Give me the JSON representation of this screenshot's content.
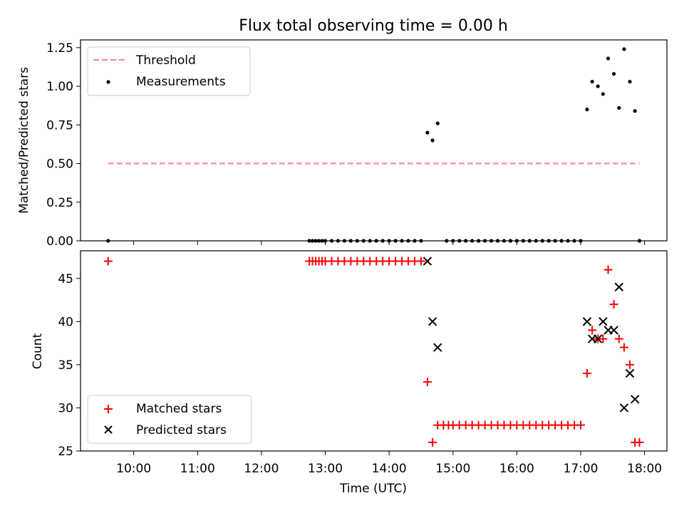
{
  "figure_title": "Flux total observing time = 0.00 h",
  "chart_data": [
    {
      "type": "scatter",
      "ylabel": "Matched/Predicted stars",
      "ylim": [
        0,
        1.3
      ],
      "yticks": [
        "0.00",
        "0.25",
        "0.50",
        "0.75",
        "1.00",
        "1.25"
      ],
      "xlim_hours": [
        9.167,
        18.35
      ],
      "threshold": {
        "name": "Threshold",
        "value": 0.5,
        "x_start": 9.6,
        "x_end": 17.92,
        "color": "#ff8080"
      },
      "series": [
        {
          "name": "Measurements",
          "color": "#000000",
          "x": [
            9.6,
            12.75,
            12.8,
            12.85,
            12.9,
            12.95,
            13.0,
            13.1,
            13.2,
            13.3,
            13.4,
            13.5,
            13.6,
            13.7,
            13.8,
            13.9,
            14.0,
            14.1,
            14.2,
            14.3,
            14.4,
            14.5,
            14.6,
            14.68,
            14.76,
            14.9,
            15.0,
            15.1,
            15.2,
            15.3,
            15.4,
            15.5,
            15.6,
            15.7,
            15.8,
            15.9,
            16.0,
            16.1,
            16.2,
            16.3,
            16.4,
            16.5,
            16.6,
            16.7,
            16.8,
            16.9,
            17.0,
            17.1,
            17.18,
            17.27,
            17.35,
            17.43,
            17.52,
            17.6,
            17.68,
            17.77,
            17.85,
            17.92
          ],
          "y": [
            0,
            0,
            0,
            0,
            0,
            0,
            0,
            0,
            0,
            0,
            0,
            0,
            0,
            0,
            0,
            0,
            0,
            0,
            0,
            0,
            0,
            0,
            0.7,
            0.65,
            0.76,
            0,
            0,
            0,
            0,
            0,
            0,
            0,
            0,
            0,
            0,
            0,
            0,
            0,
            0,
            0,
            0,
            0,
            0,
            0,
            0,
            0,
            0,
            0.85,
            1.03,
            1.0,
            0.95,
            1.18,
            1.08,
            0.86,
            1.24,
            1.03,
            0.84,
            0
          ]
        }
      ],
      "legend": "top-left"
    },
    {
      "type": "scatter",
      "xlabel": "Time (UTC)",
      "ylabel": "Count",
      "ylim": [
        25,
        48.2
      ],
      "yticks": [
        "25",
        "30",
        "35",
        "40",
        "45"
      ],
      "xlim_hours": [
        9.167,
        18.35
      ],
      "xticks": [
        "10:00",
        "11:00",
        "12:00",
        "13:00",
        "14:00",
        "15:00",
        "16:00",
        "17:00",
        "18:00"
      ],
      "series": [
        {
          "name": "Matched stars",
          "color": "#ff0000",
          "marker": "plus",
          "x": [
            9.6,
            12.75,
            12.8,
            12.85,
            12.9,
            12.95,
            13.0,
            13.1,
            13.2,
            13.3,
            13.4,
            13.5,
            13.6,
            13.7,
            13.8,
            13.9,
            14.0,
            14.1,
            14.2,
            14.3,
            14.4,
            14.5,
            14.6,
            14.68,
            14.76,
            14.85,
            14.93,
            15.0,
            15.1,
            15.2,
            15.3,
            15.4,
            15.5,
            15.6,
            15.7,
            15.8,
            15.9,
            16.0,
            16.1,
            16.2,
            16.3,
            16.4,
            16.5,
            16.6,
            16.7,
            16.8,
            16.9,
            17.0,
            17.1,
            17.18,
            17.27,
            17.35,
            17.43,
            17.52,
            17.6,
            17.68,
            17.77,
            17.85,
            17.92
          ],
          "y": [
            47,
            47,
            47,
            47,
            47,
            47,
            47,
            47,
            47,
            47,
            47,
            47,
            47,
            47,
            47,
            47,
            47,
            47,
            47,
            47,
            47,
            47,
            33,
            26,
            28,
            28,
            28,
            28,
            28,
            28,
            28,
            28,
            28,
            28,
            28,
            28,
            28,
            28,
            28,
            28,
            28,
            28,
            28,
            28,
            28,
            28,
            28,
            28,
            34,
            39,
            38,
            38,
            46,
            42,
            38,
            37,
            35,
            26,
            26
          ]
        },
        {
          "name": "Predicted stars",
          "color": "#000000",
          "marker": "x",
          "x": [
            14.6,
            14.68,
            14.76,
            17.1,
            17.18,
            17.27,
            17.35,
            17.43,
            17.52,
            17.6,
            17.68,
            17.77,
            17.85
          ],
          "y": [
            47,
            40,
            37,
            40,
            38,
            38,
            40,
            39,
            39,
            44,
            30,
            34,
            31
          ]
        }
      ],
      "legend": "bottom-left"
    }
  ]
}
